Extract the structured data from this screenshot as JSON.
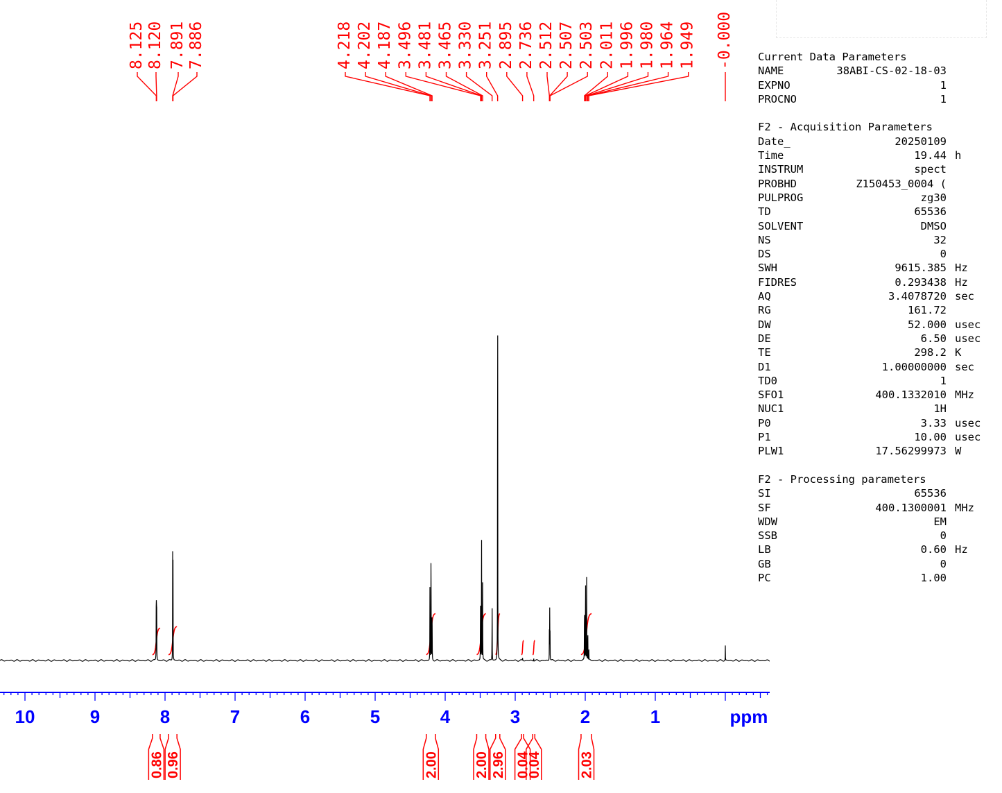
{
  "colors": {
    "spectrum": "#000000",
    "annotation": "#ff0000",
    "axis": "#0000ff",
    "background": "#ffffff"
  },
  "chart_data": {
    "type": "line",
    "title": "",
    "xlabel": "ppm",
    "ylabel": "",
    "x_reversed": true,
    "xlim": [
      10.5,
      -0.65
    ],
    "x_ticks": [
      "10",
      "9",
      "8",
      "7",
      "6",
      "5",
      "4",
      "3",
      "2",
      "1"
    ],
    "baseline_noise": "low",
    "peaks": [
      {
        "ppm": 8.125,
        "height": 0.193
      },
      {
        "ppm": 8.12,
        "height": 0.177
      },
      {
        "ppm": 7.891,
        "height": 0.191
      },
      {
        "ppm": 7.886,
        "height": 0.175
      },
      {
        "ppm": 4.218,
        "height": 0.134
      },
      {
        "ppm": 4.202,
        "height": 0.288
      },
      {
        "ppm": 4.187,
        "height": 0.141
      },
      {
        "ppm": 3.496,
        "height": 0.159
      },
      {
        "ppm": 3.481,
        "height": 0.315
      },
      {
        "ppm": 3.465,
        "height": 0.151
      },
      {
        "ppm": 3.33,
        "height": 0.136
      },
      {
        "ppm": 3.251,
        "height": 1.0
      },
      {
        "ppm": 2.895,
        "height": 0.007
      },
      {
        "ppm": 2.736,
        "height": 0.007
      },
      {
        "ppm": 2.512,
        "height": 0.057
      },
      {
        "ppm": 2.507,
        "height": 0.101
      },
      {
        "ppm": 2.503,
        "height": 0.057
      },
      {
        "ppm": 2.011,
        "height": 0.147
      },
      {
        "ppm": 1.996,
        "height": 0.22
      },
      {
        "ppm": 1.98,
        "height": 0.155
      },
      {
        "ppm": 1.964,
        "height": 0.085
      },
      {
        "ppm": 1.949,
        "height": 0.03
      },
      {
        "ppm": 0.0,
        "height": 0.027
      }
    ],
    "peak_labels": [
      {
        "label": "8.125",
        "ppm": 8.125
      },
      {
        "label": "8.120",
        "ppm": 8.12
      },
      {
        "label": "7.891",
        "ppm": 7.891
      },
      {
        "label": "7.886",
        "ppm": 7.886
      },
      {
        "label": "4.218",
        "ppm": 4.218
      },
      {
        "label": "4.202",
        "ppm": 4.202
      },
      {
        "label": "4.187",
        "ppm": 4.187
      },
      {
        "label": "3.496",
        "ppm": 3.496
      },
      {
        "label": "3.481",
        "ppm": 3.481
      },
      {
        "label": "3.465",
        "ppm": 3.465
      },
      {
        "label": "3.330",
        "ppm": 3.33
      },
      {
        "label": "3.251",
        "ppm": 3.251
      },
      {
        "label": "2.895",
        "ppm": 2.895
      },
      {
        "label": "2.736",
        "ppm": 2.736
      },
      {
        "label": "2.512",
        "ppm": 2.512
      },
      {
        "label": "2.507",
        "ppm": 2.507
      },
      {
        "label": "2.503",
        "ppm": 2.503
      },
      {
        "label": "2.011",
        "ppm": 2.011
      },
      {
        "label": "1.996",
        "ppm": 1.996
      },
      {
        "label": "1.980",
        "ppm": 1.98
      },
      {
        "label": "1.964",
        "ppm": 1.964
      },
      {
        "label": "1.949",
        "ppm": 1.949
      },
      {
        "label": "-0.000",
        "ppm": 0.0
      }
    ],
    "integrals": [
      {
        "value": "0.86",
        "from": 8.18,
        "to": 8.07
      },
      {
        "value": "0.96",
        "from": 7.95,
        "to": 7.83
      },
      {
        "value": "2.00",
        "from": 4.27,
        "to": 4.14
      },
      {
        "value": "2.00",
        "from": 3.55,
        "to": 3.42
      },
      {
        "value": "2.96",
        "from": 3.28,
        "to": 3.22
      },
      {
        "value": "0.04",
        "from": 2.91,
        "to": 2.88
      },
      {
        "value": "0.04",
        "from": 2.75,
        "to": 2.72
      },
      {
        "value": "2.03",
        "from": 2.06,
        "to": 1.91
      }
    ]
  },
  "parameters": {
    "current": {
      "title": "Current Data Parameters",
      "rows": [
        {
          "key": "NAME",
          "value": "38ABI-CS-02-18-03",
          "unit": ""
        },
        {
          "key": "EXPNO",
          "value": "1",
          "unit": ""
        },
        {
          "key": "PROCNO",
          "value": "1",
          "unit": ""
        }
      ]
    },
    "acquisition": {
      "title": "F2 - Acquisition Parameters",
      "rows": [
        {
          "key": "Date_",
          "value": "20250109",
          "unit": ""
        },
        {
          "key": "Time",
          "value": "19.44",
          "unit": "h"
        },
        {
          "key": "INSTRUM",
          "value": "spect",
          "unit": ""
        },
        {
          "key": "PROBHD",
          "value": "Z150453_0004 (",
          "unit": ""
        },
        {
          "key": "PULPROG",
          "value": "zg30",
          "unit": ""
        },
        {
          "key": "TD",
          "value": "65536",
          "unit": ""
        },
        {
          "key": "SOLVENT",
          "value": "DMSO",
          "unit": ""
        },
        {
          "key": "NS",
          "value": "32",
          "unit": ""
        },
        {
          "key": "DS",
          "value": "0",
          "unit": ""
        },
        {
          "key": "SWH",
          "value": "9615.385",
          "unit": "Hz"
        },
        {
          "key": "FIDRES",
          "value": "0.293438",
          "unit": "Hz"
        },
        {
          "key": "AQ",
          "value": "3.4078720",
          "unit": "sec"
        },
        {
          "key": "RG",
          "value": "161.72",
          "unit": ""
        },
        {
          "key": "DW",
          "value": "52.000",
          "unit": "usec"
        },
        {
          "key": "DE",
          "value": "6.50",
          "unit": "usec"
        },
        {
          "key": "TE",
          "value": "298.2",
          "unit": "K"
        },
        {
          "key": "D1",
          "value": "1.00000000",
          "unit": "sec"
        },
        {
          "key": "TD0",
          "value": "1",
          "unit": ""
        },
        {
          "key": "SFO1",
          "value": "400.1332010",
          "unit": "MHz"
        },
        {
          "key": "NUC1",
          "value": "1H",
          "unit": ""
        },
        {
          "key": "P0",
          "value": "3.33",
          "unit": "usec"
        },
        {
          "key": "P1",
          "value": "10.00",
          "unit": "usec"
        },
        {
          "key": "PLW1",
          "value": "17.56299973",
          "unit": "W"
        }
      ]
    },
    "processing": {
      "title": "F2 - Processing parameters",
      "rows": [
        {
          "key": "SI",
          "value": "65536",
          "unit": ""
        },
        {
          "key": "SF",
          "value": "400.1300001",
          "unit": "MHz"
        },
        {
          "key": "WDW",
          "value": "EM",
          "unit": ""
        },
        {
          "key": "SSB",
          "value": "0",
          "unit": ""
        },
        {
          "key": "LB",
          "value": "0.60",
          "unit": "Hz"
        },
        {
          "key": "GB",
          "value": "0",
          "unit": ""
        },
        {
          "key": "PC",
          "value": "1.00",
          "unit": ""
        }
      ]
    }
  }
}
